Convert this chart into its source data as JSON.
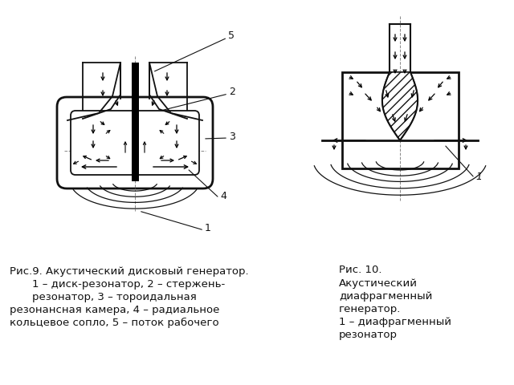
{
  "background_color": "#ffffff",
  "fig_width": 6.4,
  "fig_height": 4.8,
  "dpi": 100,
  "caption_left": {
    "line1": "Рис.9. Акустический дисковый генератор.",
    "line2": "1 – диск-резонатор, 2 – стержень-",
    "line3": "резонатор, 3 – тороидальная",
    "line4": "резонансная камера, 4 – радиальное",
    "line5": "кольцевое сопло, 5 – поток рабочего"
  },
  "caption_right": {
    "line1": "Рис. 10.",
    "line2": "Акустический",
    "line3": "диафрагменный",
    "line4": "генератор.",
    "line5": "1 – диафрагменный",
    "line6": "резонатор"
  },
  "label_color": "#111111",
  "line_color": "#111111",
  "arrow_color": "#111111"
}
